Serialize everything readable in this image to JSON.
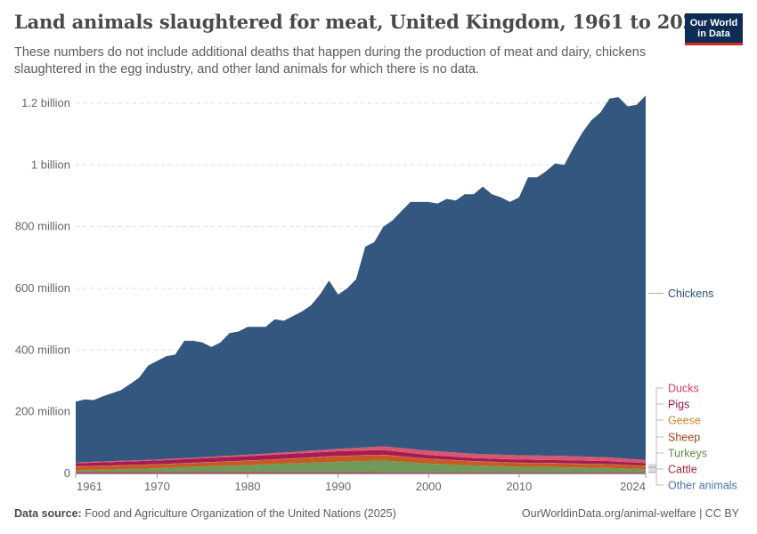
{
  "title": "Land animals slaughtered for meat, United Kingdom, 1961 to 2024",
  "subtitle": "These numbers do not include additional deaths that happen during the production of meat and dairy, chickens slaughtered in the egg industry, and other land animals for which there is no data.",
  "logo": {
    "line1": "Our World",
    "line2": "in Data",
    "bg": "#0d2d54",
    "accent": "#d42b21"
  },
  "footer": {
    "source_label": "Data source:",
    "source_text": "Food and Agriculture Organization of the United Nations (2025)",
    "link_text": "OurWorldinData.org/animal-welfare | CC BY"
  },
  "chart_data": {
    "type": "area",
    "stacked": true,
    "title": "Land animals slaughtered for meat, United Kingdom, 1961 to 2024",
    "xlabel": "",
    "ylabel": "",
    "xlim": [
      1961,
      2024
    ],
    "ylim": [
      0,
      1200000000
    ],
    "grid": true,
    "legend_position": "right",
    "x_ticks": [
      {
        "value": 1961,
        "label": "1961"
      },
      {
        "value": 1970,
        "label": "1970"
      },
      {
        "value": 1980,
        "label": "1980"
      },
      {
        "value": 1990,
        "label": "1990"
      },
      {
        "value": 2000,
        "label": "2000"
      },
      {
        "value": 2010,
        "label": "2010"
      },
      {
        "value": 2024,
        "label": "2024"
      }
    ],
    "y_ticks": [
      {
        "value": 0,
        "label": "0"
      },
      {
        "value": 200000000,
        "label": "200 million"
      },
      {
        "value": 400000000,
        "label": "400 million"
      },
      {
        "value": 600000000,
        "label": "600 million"
      },
      {
        "value": 800000000,
        "label": "800 million"
      },
      {
        "value": 1000000000,
        "label": "1 billion"
      },
      {
        "value": 1200000000,
        "label": "1.2 billion"
      }
    ],
    "total_keys": [
      1961,
      1962,
      1963,
      1964,
      1965,
      1966,
      1967,
      1968,
      1969,
      1970,
      1971,
      1972,
      1973,
      1974,
      1975,
      1976,
      1977,
      1978,
      1979,
      1980,
      1981,
      1982,
      1983,
      1984,
      1985,
      1986,
      1987,
      1988,
      1989,
      1990,
      1991,
      1992,
      1993,
      1994,
      1995,
      1996,
      1997,
      1998,
      2000,
      2001,
      2002,
      2003,
      2004,
      2005,
      2006,
      2007,
      2008,
      2009,
      2010,
      2011,
      2012,
      2013,
      2014,
      2015,
      2016,
      2017,
      2018,
      2019,
      2020,
      2021,
      2022,
      2023,
      2024
    ],
    "total_vals": [
      233,
      240,
      238,
      250,
      260,
      270,
      290,
      310,
      350,
      365,
      380,
      385,
      430,
      430,
      425,
      410,
      425,
      455,
      460,
      475,
      475,
      475,
      500,
      495,
      510,
      525,
      545,
      580,
      625,
      580,
      600,
      630,
      735,
      750,
      800,
      820,
      850,
      880,
      880,
      875,
      890,
      885,
      905,
      905,
      930,
      905,
      895,
      880,
      895,
      960,
      960,
      980,
      1005,
      1000,
      1055,
      1105,
      1145,
      1170,
      1215,
      1220,
      1190,
      1195,
      1225
    ],
    "lower_years": [
      1961,
      1965,
      1970,
      1975,
      1980,
      1985,
      1990,
      1995,
      2000,
      2005,
      2010,
      2015,
      2020,
      2024
    ],
    "series": [
      {
        "name": "Other animals",
        "color": "#4e73a8",
        "values": [
          1,
          1,
          1,
          1,
          1,
          1,
          1,
          1,
          1,
          1,
          1,
          1,
          1,
          1
        ]
      },
      {
        "name": "Cattle",
        "color": "#b13546",
        "values": [
          4,
          4,
          4,
          4,
          4,
          4,
          4,
          3,
          3,
          3,
          3,
          3,
          3,
          3
        ]
      },
      {
        "name": "Turkeys",
        "color": "#6f9a59",
        "values": [
          5,
          8,
          12,
          18,
          22,
          28,
          33,
          38,
          28,
          22,
          18,
          16,
          14,
          10
        ]
      },
      {
        "name": "Sheep",
        "color": "#c65a24",
        "values": [
          12,
          12,
          12,
          12,
          14,
          15,
          18,
          18,
          15,
          13,
          12,
          12,
          11,
          10
        ]
      },
      {
        "name": "Geese",
        "color": "#c9862f",
        "values": [
          1,
          1,
          1,
          1,
          1,
          1,
          1,
          1,
          1,
          1,
          1,
          1,
          1,
          1
        ]
      },
      {
        "name": "Pigs",
        "color": "#a51b55",
        "values": [
          10,
          11,
          12,
          13,
          14,
          15,
          15,
          15,
          12,
          10,
          10,
          10,
          10,
          9
        ]
      },
      {
        "name": "Ducks",
        "color": "#d9566f",
        "values": [
          3,
          3,
          3,
          4,
          5,
          6,
          8,
          12,
          14,
          14,
          14,
          14,
          12,
          10
        ]
      },
      {
        "name": "Chickens",
        "color": "#33577f",
        "values": []
      }
    ],
    "units_note": "values in millions"
  }
}
